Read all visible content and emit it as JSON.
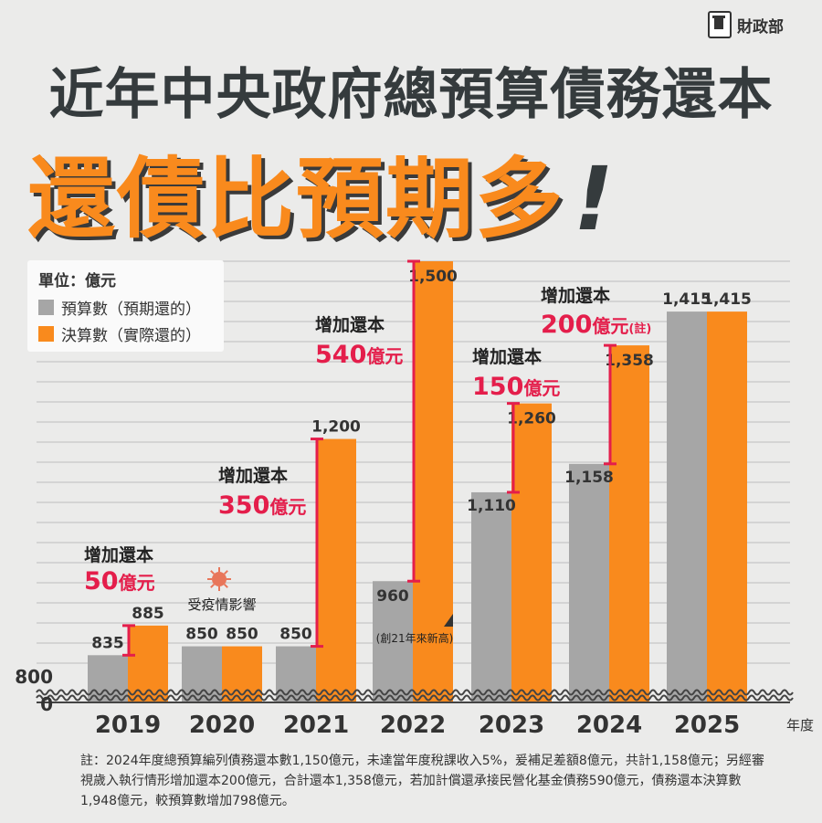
{
  "header": {
    "logo_text": "財政部",
    "title_line1": "近年中央政府總預算債務還本",
    "title_line2": "還債比預期多",
    "title_exclaim": "!"
  },
  "legend": {
    "unit": "單位：億元",
    "items": [
      {
        "label": "預算數（預期還的）",
        "color": "#a6a6a6"
      },
      {
        "label": "決算數（實際還的）",
        "color": "#f98a1d"
      }
    ]
  },
  "chart_data": {
    "type": "bar",
    "categories": [
      "2019",
      "2020",
      "2021",
      "2022",
      "2023",
      "2024",
      "2025"
    ],
    "series": [
      {
        "name": "預算數（預期還的）",
        "color": "#a6a6a6",
        "values": [
          835,
          850,
          850,
          960,
          1110,
          1158,
          1415
        ],
        "labels": [
          "835",
          "850",
          "850",
          "960",
          "1,110",
          "1,158",
          "1,415"
        ]
      },
      {
        "name": "決算數（實際還的）",
        "color": "#f98a1d",
        "values": [
          885,
          850,
          1200,
          1500,
          1260,
          1358,
          1415
        ],
        "labels": [
          "885",
          "850",
          "1,200",
          "1,500",
          "1,260",
          "1,358",
          "1,415"
        ]
      }
    ],
    "xlabel": "年度",
    "ylabel": "",
    "y_ticks": [
      "800",
      "0"
    ],
    "axis_break": true,
    "ylim": [
      0,
      1500
    ],
    "annotations": [
      {
        "year": "2019",
        "line1": "增加還本",
        "amount": "50",
        "unit": "億元",
        "note": ""
      },
      {
        "year": "2021",
        "line1": "增加還本",
        "amount": "350",
        "unit": "億元",
        "note": ""
      },
      {
        "year": "2022",
        "line1": "增加還本",
        "amount": "540",
        "unit": "億元",
        "note": ""
      },
      {
        "year": "2023",
        "line1": "增加還本",
        "amount": "150",
        "unit": "億元",
        "note": ""
      },
      {
        "year": "2024",
        "line1": "增加還本",
        "amount": "200",
        "unit": "億元",
        "note": "(註)"
      }
    ],
    "covid_note": "受疫情影響",
    "record_note": "(創21年來新高)"
  },
  "footnote": "註：2024年度總預算編列債務還本數1,150億元，未達當年度稅課收入5%，爰補足差額8億元，共計1,158億元；另經審視歲入執行情形增加還本200億元，合計還本1,358億元，若加計償還承接民營化基金債務590億元，債務還本決算數1,948億元，較預算數增加798億元。"
}
